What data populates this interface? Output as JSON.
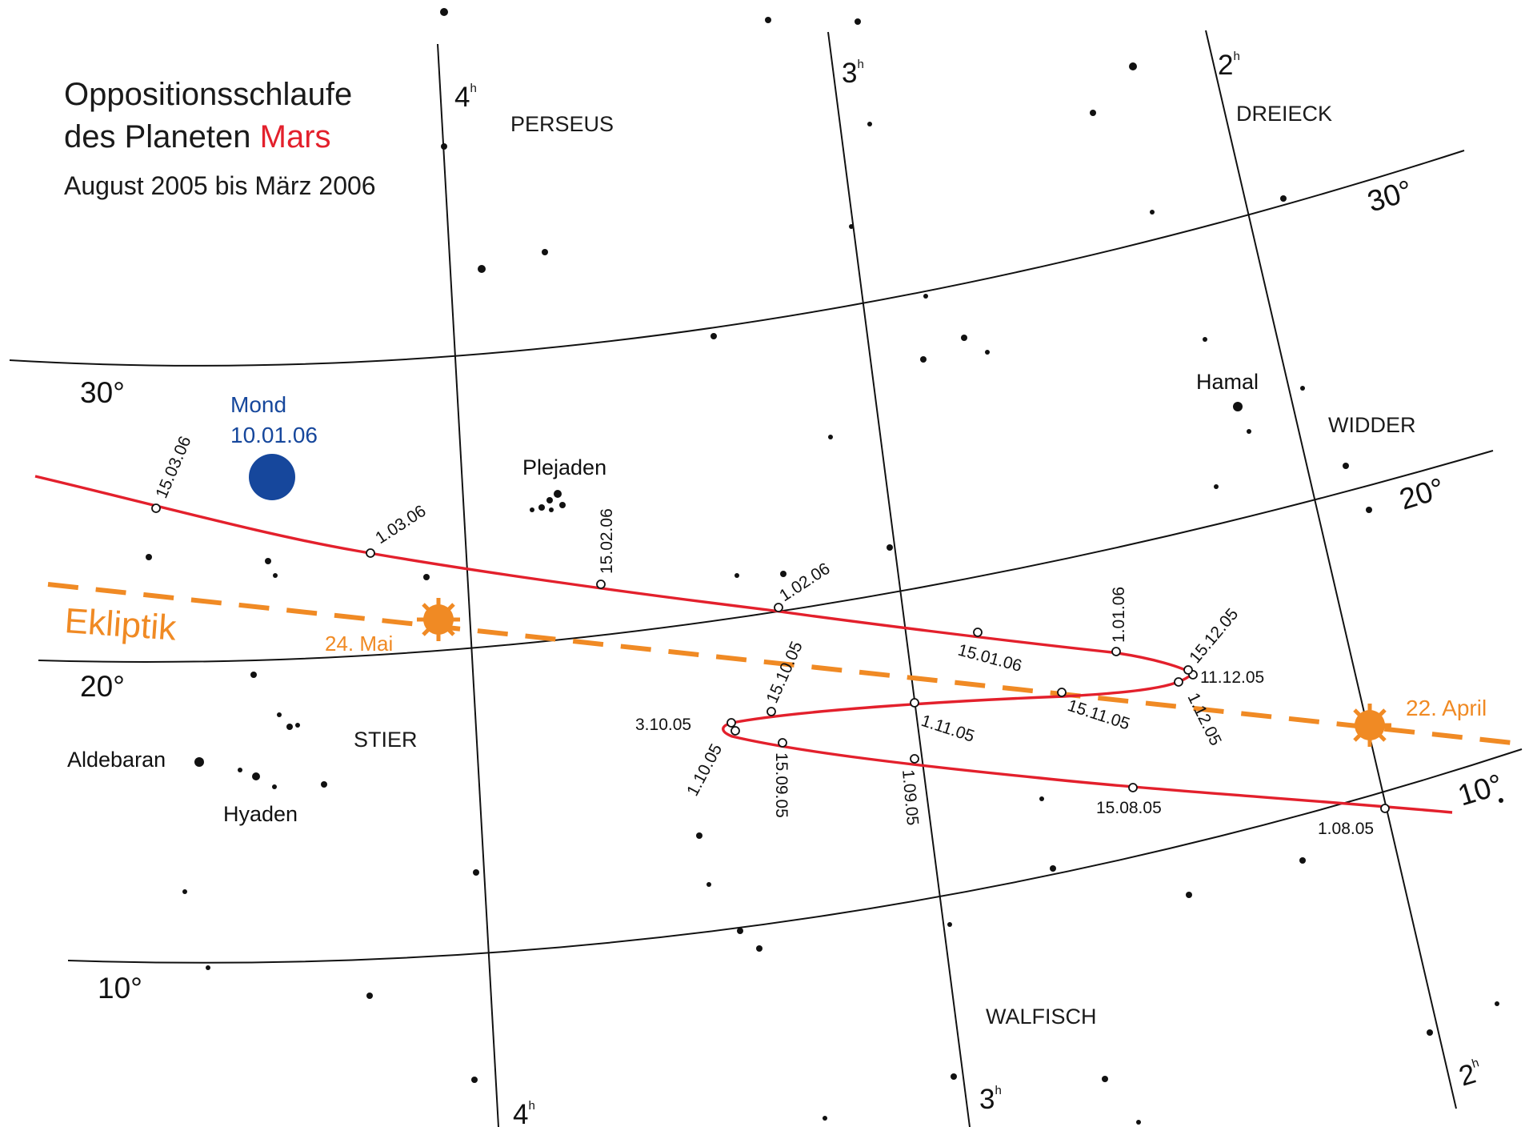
{
  "title": {
    "line1": "Oppositionsschlaufe",
    "line2_prefix": "des Planeten ",
    "line2_planet": "Mars",
    "subtitle": "August 2005 bis März 2006"
  },
  "colors": {
    "mars": "#e3202c",
    "ecliptic": "#f08a24",
    "moon": "#16479c",
    "grid": "#111111"
  },
  "constellations": {
    "perseus": "PERSEUS",
    "dreieck": "DREIECK",
    "widder": "WIDDER",
    "stier": "STIER",
    "walfisch": "WALFISCH"
  },
  "stars": {
    "hamal": "Hamal",
    "aldebaran": "Aldebaran",
    "plejaden": "Plejaden",
    "hyaden": "Hyaden"
  },
  "moon": {
    "label": "Mond",
    "date": "10.01.06"
  },
  "ecliptic": {
    "label": "Ekliptik",
    "sun_left_date": "24. Mai",
    "sun_right_date": "22. April"
  },
  "grid": {
    "dec30_left": "30°",
    "dec30_right": "30°",
    "dec20_left": "20°",
    "dec20_right": "20°",
    "dec10_left": "10°",
    "dec10_right": "10°",
    "ra4_top": "4",
    "ra4_bottom": "4",
    "ra3_top": "3",
    "ra3_bottom": "3",
    "ra2_top": "2",
    "ra2_bottom": "2",
    "hour_sup": "h"
  },
  "mars_dates": {
    "d0108": "1.08.05",
    "d1508": "15.08.05",
    "d0109": "1.09.05",
    "d1509": "15.09.05",
    "d0110": "1.10.05",
    "d0310": "3.10.05",
    "d1510": "15.10.05",
    "d0111": "1.11.05",
    "d1511": "15.11.05",
    "d0112": "1.12.05",
    "d1112": "11.12.05",
    "d1512": "15.12.05",
    "d0101": "1.01.06",
    "d1501": "15.01.06",
    "d0102": "1.02.06",
    "d1502": "15.02.06",
    "d0103": "1.03.06",
    "d1503": "15.03.06"
  }
}
